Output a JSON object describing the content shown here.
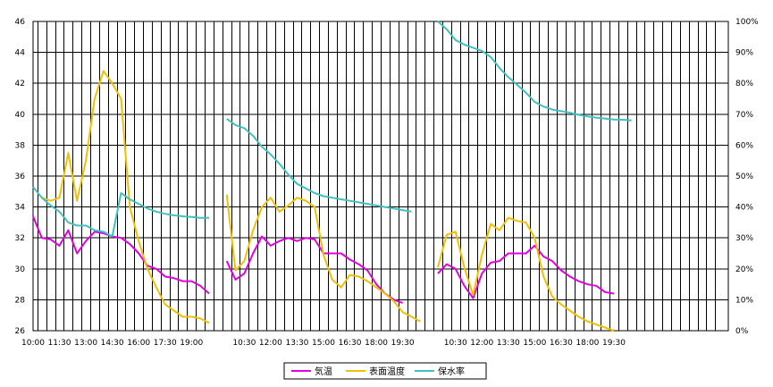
{
  "chart_data": {
    "type": "line",
    "grid": true,
    "legend_position": "bottom",
    "y_left": {
      "min": 26,
      "max": 46,
      "ticks": [
        "26",
        "28",
        "30",
        "32",
        "34",
        "36",
        "38",
        "40",
        "42",
        "44",
        "46"
      ]
    },
    "y_right": {
      "min": 0,
      "max": 100,
      "ticks": [
        "0%",
        "10%",
        "20%",
        "30%",
        "40%",
        "50%",
        "60%",
        "70%",
        "80%",
        "90%",
        "100%"
      ]
    },
    "x_axis": {
      "min": 0,
      "max": 79
    },
    "x_ticks": [
      {
        "x": 0,
        "label": "10:00"
      },
      {
        "x": 3,
        "label": "11:30"
      },
      {
        "x": 6,
        "label": "13:00"
      },
      {
        "x": 9,
        "label": "14:30"
      },
      {
        "x": 12,
        "label": "16:00"
      },
      {
        "x": 15,
        "label": "17:30"
      },
      {
        "x": 18,
        "label": "19:00"
      },
      {
        "x": 24,
        "label": "10:30"
      },
      {
        "x": 27,
        "label": "12:00"
      },
      {
        "x": 30,
        "label": "13:30"
      },
      {
        "x": 33,
        "label": "15:00"
      },
      {
        "x": 36,
        "label": "16:30"
      },
      {
        "x": 39,
        "label": "18:00"
      },
      {
        "x": 42,
        "label": "19:30"
      },
      {
        "x": 48,
        "label": "10:30"
      },
      {
        "x": 51,
        "label": "12:00"
      },
      {
        "x": 54,
        "label": "13:30"
      },
      {
        "x": 57,
        "label": "15:00"
      },
      {
        "x": 60,
        "label": "16:30"
      },
      {
        "x": 63,
        "label": "18:00"
      },
      {
        "x": 66,
        "label": "19:30"
      }
    ],
    "series": [
      {
        "name": "気温",
        "color": "#e000e0",
        "axis": "left",
        "segments": [
          {
            "x0": 0,
            "values": [
              33.4,
              32.0,
              31.9,
              31.5,
              32.5,
              31.0,
              31.8,
              32.4,
              32.3,
              32.1,
              32.0,
              31.6,
              31.0,
              30.2,
              30.0,
              29.5,
              29.4,
              29.2,
              29.2,
              28.9,
              28.4
            ]
          },
          {
            "x0": 22,
            "values": [
              30.5,
              29.3,
              29.7,
              31.0,
              32.1,
              31.5,
              31.8,
              32.0,
              31.8,
              32.0,
              31.9,
              31.0,
              31.0,
              31.0,
              30.6,
              30.3,
              29.9,
              29.0,
              28.4,
              28.0,
              27.8
            ]
          },
          {
            "x0": 46,
            "values": [
              29.7,
              30.3,
              30.0,
              28.9,
              28.1,
              29.7,
              30.4,
              30.5,
              31.0,
              31.0,
              31.0,
              31.5,
              30.8,
              30.5,
              29.9,
              29.5,
              29.2,
              29.0,
              28.9,
              28.5,
              28.4
            ]
          }
        ]
      },
      {
        "name": "表面温度",
        "color": "#f0c000",
        "axis": "left",
        "segments": [
          {
            "x0": 1,
            "values": [
              34.6,
              34.4,
              34.6,
              37.5,
              34.4,
              37.0,
              41.0,
              42.8,
              42.0,
              41.0,
              34.0,
              31.8,
              30.0,
              28.8,
              27.7,
              27.3,
              26.9,
              26.9,
              26.8,
              26.5
            ]
          },
          {
            "x0": 22,
            "values": [
              34.8,
              29.9,
              30.5,
              32.5,
              34.0,
              34.6,
              33.7,
              34.1,
              34.6,
              34.4,
              34.0,
              30.9,
              29.3,
              28.8,
              29.6,
              29.5,
              29.2,
              28.8,
              28.4,
              27.9,
              27.2,
              26.9,
              26.6
            ]
          },
          {
            "x0": 46,
            "values": [
              30.1,
              32.2,
              32.4,
              30.1,
              28.3,
              30.9,
              32.9,
              32.5,
              33.3,
              33.1,
              33.0,
              32.0,
              29.5,
              28.2,
              27.7,
              27.3,
              26.9,
              26.6,
              26.4,
              26.2,
              26.0
            ]
          }
        ]
      },
      {
        "name": "保水率",
        "color": "#40c0c0",
        "axis": "right",
        "segments": [
          {
            "x0": 0,
            "values": [
              46.5,
              43.0,
              40.5,
              38.5,
              35.0,
              34.0,
              34.0,
              32.5,
              32.0,
              30.5,
              44.5,
              42.5,
              41.0,
              39.5,
              38.5,
              37.8,
              37.3,
              37.0,
              36.8,
              36.5,
              36.5
            ]
          },
          {
            "x0": 22,
            "values": [
              68.5,
              66.5,
              65.5,
              63.0,
              59.5,
              57.0,
              54.0,
              50.5,
              47.5,
              46.0,
              44.5,
              43.5,
              43.0,
              42.5,
              42.0,
              41.5,
              41.0,
              40.5,
              40.0,
              39.5,
              39.0,
              38.5
            ]
          },
          {
            "x0": 46,
            "values": [
              100.0,
              97.5,
              94.0,
              92.5,
              91.5,
              90.5,
              88.5,
              85.0,
              82.0,
              79.5,
              77.0,
              74.0,
              72.5,
              71.5,
              71.0,
              70.5,
              69.8,
              69.3,
              68.9,
              68.6,
              68.3,
              68.2,
              68.0
            ]
          }
        ]
      }
    ]
  }
}
